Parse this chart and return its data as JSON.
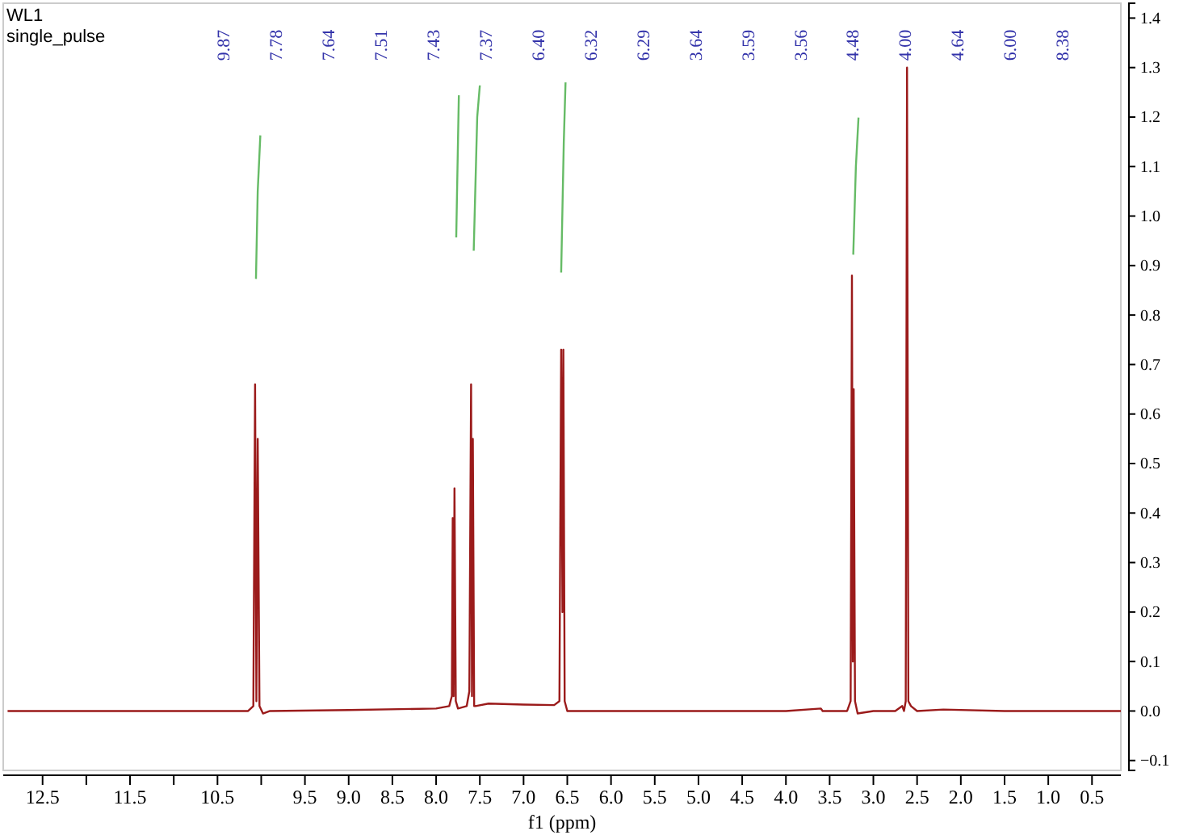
{
  "chart_data": {
    "type": "line",
    "title": "WL1",
    "subtitle": "single_pulse",
    "xlabel": "f1 (ppm)",
    "xlim": [
      12.95,
      0.17
    ],
    "xticks": [
      12.5,
      {
        "value": 12,
        "label": null
      },
      11.5,
      {
        "value": 11,
        "label": null
      },
      10.5,
      {
        "value": 10,
        "label": null
      },
      9.5,
      {
        "value": 9,
        "label": "9.0"
      },
      8.5,
      {
        "value": 8,
        "label": "8.0"
      },
      7.5,
      {
        "value": 7,
        "label": "7.0"
      },
      6.5,
      {
        "value": 6,
        "label": "6.0"
      },
      5.5,
      {
        "value": 5,
        "label": "5.0"
      },
      4.5,
      {
        "value": 4,
        "label": "4.0"
      },
      3.5,
      {
        "value": 3,
        "label": "3.0"
      },
      2.5,
      {
        "value": 2,
        "label": "2.0"
      },
      1.5,
      {
        "value": 1,
        "label": "1.0"
      },
      0.5
    ],
    "ylim": [
      -0.12,
      1.43
    ],
    "yticks": [
      -0.1,
      {
        "value": 0,
        "label": "0.0"
      },
      0.1,
      0.2,
      0.3,
      0.4,
      0.5,
      0.6,
      0.7,
      0.8,
      0.9,
      {
        "value": 1,
        "label": "1.0"
      },
      1.1,
      1.2,
      1.3,
      1.4
    ],
    "line_style": "solid",
    "series": [
      {
        "color": "#9b1b1b",
        "x": [
          12.9,
          10.15,
          10.09,
          10.07,
          10.055,
          10.04,
          10.02,
          9.98,
          9.9,
          9.0,
          8.0,
          7.85,
          7.82,
          7.81,
          7.8,
          7.79,
          7.775,
          7.75,
          7.65,
          7.62,
          7.6,
          7.59,
          7.58,
          7.565,
          7.55,
          7.4,
          7.0,
          6.65,
          6.59,
          6.57,
          6.555,
          6.545,
          6.53,
          6.5,
          6.3,
          4.0,
          3.6,
          3.58,
          3.3,
          3.26,
          3.245,
          3.235,
          3.225,
          3.21,
          3.18,
          3.0,
          2.75,
          2.67,
          2.65,
          2.63,
          2.615,
          2.6,
          2.57,
          2.5,
          2.2,
          1.5,
          0.17
        ],
        "values": [
          0,
          0,
          0.01,
          0.66,
          0.02,
          0.55,
          0.01,
          -0.005,
          0,
          0.002,
          0.005,
          0.01,
          0.03,
          0.39,
          0.03,
          0.45,
          0.02,
          0.005,
          0.01,
          0.04,
          0.66,
          0.03,
          0.55,
          0.01,
          0.01,
          0.015,
          0.013,
          0.012,
          0.02,
          0.73,
          0.2,
          0.73,
          0.02,
          0,
          0,
          0,
          0.005,
          0,
          0,
          0.02,
          0.88,
          0.1,
          0.65,
          0.02,
          -0.005,
          0,
          0,
          0.01,
          0,
          0.02,
          1.3,
          0.02,
          0.01,
          0,
          0.003,
          0,
          0
        ]
      },
      {
        "color": "#66bb66",
        "x": [
          10.06,
          10.04,
          10.01,
          null,
          7.77,
          7.75,
          7.74,
          null,
          7.57,
          7.53,
          7.5,
          null,
          6.57,
          6.54,
          6.52,
          null,
          3.23,
          3.2,
          3.17
        ],
        "values": [
          0.873,
          1.05,
          1.163,
          null,
          0.957,
          1.15,
          1.244,
          null,
          0.93,
          1.2,
          1.264,
          null,
          0.886,
          1.15,
          1.27,
          null,
          0.922,
          1.1,
          1.199
        ]
      }
    ],
    "annotations": [
      "9.87",
      "7.78",
      "7.64",
      "7.51",
      "7.43",
      "7.37",
      "6.40",
      "6.32",
      "6.29",
      "3.64",
      "3.59",
      "3.56",
      "4.48",
      "4.00",
      "4.64",
      "6.00",
      "8.38"
    ]
  }
}
